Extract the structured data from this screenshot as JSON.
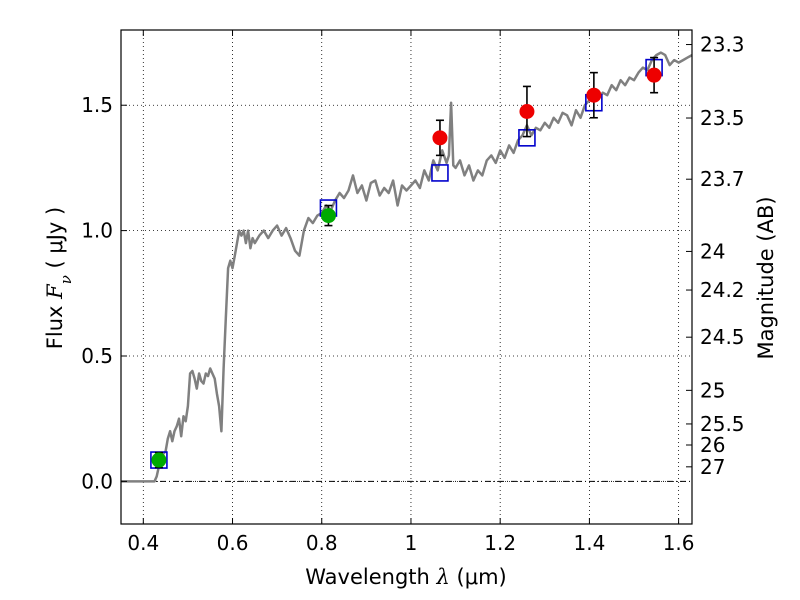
{
  "chart_data": {
    "type": "scatter",
    "xlabel": "Wavelength",
    "xlabel_symbol": "λ",
    "xlabel_unit": "(μm)",
    "ylabel": "Flux",
    "ylabel_symbol": "F",
    "ylabel_subscript": "ν",
    "ylabel_unit": "( μJy )",
    "y2label": "Magnitude (AB)",
    "xlim": [
      0.35,
      1.63
    ],
    "ylim": [
      -0.17,
      1.8
    ],
    "grid": true,
    "zero_line": true,
    "x_ticks": [
      {
        "v": 0.4,
        "label": "0.4"
      },
      {
        "v": 0.6,
        "label": "0.6"
      },
      {
        "v": 0.8,
        "label": "0.8"
      },
      {
        "v": 1.0,
        "label": "1"
      },
      {
        "v": 1.2,
        "label": "1.2"
      },
      {
        "v": 1.4,
        "label": "1.4"
      },
      {
        "v": 1.6,
        "label": "1.6"
      }
    ],
    "y_ticks": [
      {
        "v": 0.0,
        "label": "0.0"
      },
      {
        "v": 0.5,
        "label": "0.5"
      },
      {
        "v": 1.0,
        "label": "1.0"
      },
      {
        "v": 1.5,
        "label": "1.5"
      }
    ],
    "mag_ticks": [
      {
        "flux": 1.742,
        "label": "23.3"
      },
      {
        "flux": 1.449,
        "label": "23.5"
      },
      {
        "flux": 1.205,
        "label": "23.7"
      },
      {
        "flux": 0.917,
        "label": "24"
      },
      {
        "flux": 0.763,
        "label": "24.2"
      },
      {
        "flux": 0.575,
        "label": "24.5"
      },
      {
        "flux": 0.363,
        "label": "25"
      },
      {
        "flux": 0.229,
        "label": "25.5"
      },
      {
        "flux": 0.145,
        "label": "26"
      },
      {
        "flux": 0.058,
        "label": "27"
      }
    ],
    "model_spectrum": {
      "color": "#808080",
      "points": [
        [
          0.35,
          0.0
        ],
        [
          0.425,
          0.0
        ],
        [
          0.43,
          0.02
        ],
        [
          0.44,
          0.1
        ],
        [
          0.45,
          0.12
        ],
        [
          0.455,
          0.17
        ],
        [
          0.46,
          0.2
        ],
        [
          0.465,
          0.16
        ],
        [
          0.47,
          0.2
        ],
        [
          0.475,
          0.22
        ],
        [
          0.48,
          0.25
        ],
        [
          0.485,
          0.18
        ],
        [
          0.49,
          0.26
        ],
        [
          0.495,
          0.24
        ],
        [
          0.5,
          0.3
        ],
        [
          0.505,
          0.43
        ],
        [
          0.51,
          0.44
        ],
        [
          0.515,
          0.41
        ],
        [
          0.52,
          0.37
        ],
        [
          0.525,
          0.43
        ],
        [
          0.53,
          0.4
        ],
        [
          0.535,
          0.39
        ],
        [
          0.54,
          0.43
        ],
        [
          0.545,
          0.42
        ],
        [
          0.55,
          0.45
        ],
        [
          0.555,
          0.43
        ],
        [
          0.56,
          0.41
        ],
        [
          0.565,
          0.35
        ],
        [
          0.57,
          0.3
        ],
        [
          0.575,
          0.2
        ],
        [
          0.58,
          0.45
        ],
        [
          0.585,
          0.65
        ],
        [
          0.59,
          0.85
        ],
        [
          0.595,
          0.88
        ],
        [
          0.6,
          0.85
        ],
        [
          0.605,
          0.9
        ],
        [
          0.61,
          0.95
        ],
        [
          0.615,
          1.0
        ],
        [
          0.62,
          0.98
        ],
        [
          0.625,
          1.0
        ],
        [
          0.63,
          0.95
        ],
        [
          0.635,
          1.0
        ],
        [
          0.64,
          0.93
        ],
        [
          0.645,
          0.97
        ],
        [
          0.65,
          0.95
        ],
        [
          0.66,
          0.98
        ],
        [
          0.67,
          1.0
        ],
        [
          0.68,
          0.97
        ],
        [
          0.69,
          1.0
        ],
        [
          0.7,
          1.02
        ],
        [
          0.71,
          0.98
        ],
        [
          0.72,
          1.01
        ],
        [
          0.73,
          0.97
        ],
        [
          0.74,
          0.92
        ],
        [
          0.75,
          0.9
        ],
        [
          0.76,
          1.0
        ],
        [
          0.77,
          1.05
        ],
        [
          0.78,
          1.03
        ],
        [
          0.79,
          1.06
        ],
        [
          0.8,
          1.07
        ],
        [
          0.81,
          1.1
        ],
        [
          0.82,
          1.08
        ],
        [
          0.83,
          1.12
        ],
        [
          0.84,
          1.15
        ],
        [
          0.85,
          1.13
        ],
        [
          0.86,
          1.16
        ],
        [
          0.87,
          1.22
        ],
        [
          0.88,
          1.15
        ],
        [
          0.89,
          1.18
        ],
        [
          0.9,
          1.12
        ],
        [
          0.91,
          1.19
        ],
        [
          0.92,
          1.2
        ],
        [
          0.93,
          1.14
        ],
        [
          0.94,
          1.17
        ],
        [
          0.95,
          1.15
        ],
        [
          0.96,
          1.2
        ],
        [
          0.97,
          1.1
        ],
        [
          0.98,
          1.18
        ],
        [
          0.99,
          1.16
        ],
        [
          1.0,
          1.18
        ],
        [
          1.01,
          1.2
        ],
        [
          1.02,
          1.17
        ],
        [
          1.03,
          1.24
        ],
        [
          1.04,
          1.2
        ],
        [
          1.05,
          1.28
        ],
        [
          1.06,
          1.24
        ],
        [
          1.07,
          1.32
        ],
        [
          1.08,
          1.27
        ],
        [
          1.085,
          1.3
        ],
        [
          1.09,
          1.51
        ],
        [
          1.095,
          1.26
        ],
        [
          1.1,
          1.25
        ],
        [
          1.11,
          1.28
        ],
        [
          1.12,
          1.22
        ],
        [
          1.13,
          1.26
        ],
        [
          1.14,
          1.2
        ],
        [
          1.15,
          1.24
        ],
        [
          1.16,
          1.22
        ],
        [
          1.17,
          1.28
        ],
        [
          1.18,
          1.3
        ],
        [
          1.19,
          1.27
        ],
        [
          1.2,
          1.32
        ],
        [
          1.21,
          1.29
        ],
        [
          1.22,
          1.34
        ],
        [
          1.23,
          1.31
        ],
        [
          1.24,
          1.36
        ],
        [
          1.25,
          1.38
        ],
        [
          1.26,
          1.42
        ],
        [
          1.27,
          1.38
        ],
        [
          1.28,
          1.41
        ],
        [
          1.29,
          1.4
        ],
        [
          1.3,
          1.43
        ],
        [
          1.31,
          1.41
        ],
        [
          1.32,
          1.45
        ],
        [
          1.33,
          1.43
        ],
        [
          1.34,
          1.47
        ],
        [
          1.35,
          1.46
        ],
        [
          1.36,
          1.42
        ],
        [
          1.37,
          1.48
        ],
        [
          1.38,
          1.45
        ],
        [
          1.39,
          1.5
        ],
        [
          1.4,
          1.52
        ],
        [
          1.41,
          1.55
        ],
        [
          1.42,
          1.53
        ],
        [
          1.43,
          1.55
        ],
        [
          1.44,
          1.54
        ],
        [
          1.45,
          1.58
        ],
        [
          1.46,
          1.56
        ],
        [
          1.47,
          1.6
        ],
        [
          1.48,
          1.58
        ],
        [
          1.49,
          1.61
        ],
        [
          1.5,
          1.6
        ],
        [
          1.51,
          1.63
        ],
        [
          1.52,
          1.65
        ],
        [
          1.53,
          1.64
        ],
        [
          1.54,
          1.68
        ],
        [
          1.55,
          1.7
        ],
        [
          1.56,
          1.71
        ],
        [
          1.57,
          1.7
        ],
        [
          1.58,
          1.66
        ],
        [
          1.59,
          1.68
        ],
        [
          1.6,
          1.67
        ],
        [
          1.61,
          1.68
        ],
        [
          1.62,
          1.69
        ],
        [
          1.63,
          1.7
        ]
      ]
    },
    "synthetic_photometry": {
      "color": "#0000cc",
      "marker": "square",
      "points": [
        {
          "x": 0.435,
          "y": 0.085
        },
        {
          "x": 0.815,
          "y": 1.09
        },
        {
          "x": 1.065,
          "y": 1.23
        },
        {
          "x": 1.26,
          "y": 1.37
        },
        {
          "x": 1.41,
          "y": 1.51
        },
        {
          "x": 1.545,
          "y": 1.65
        }
      ]
    },
    "observed_green": {
      "color": "#00aa00",
      "marker": "circle",
      "points": [
        {
          "x": 0.435,
          "y": 0.085,
          "err": 0.03
        },
        {
          "x": 0.815,
          "y": 1.06,
          "err": 0.04
        }
      ]
    },
    "observed_red": {
      "color": "#ee0000",
      "marker": "circle",
      "points": [
        {
          "x": 1.065,
          "y": 1.37,
          "err": 0.07
        },
        {
          "x": 1.26,
          "y": 1.475,
          "err": 0.1
        },
        {
          "x": 1.41,
          "y": 1.54,
          "err": 0.09
        },
        {
          "x": 1.545,
          "y": 1.62,
          "err": 0.07
        }
      ]
    }
  }
}
